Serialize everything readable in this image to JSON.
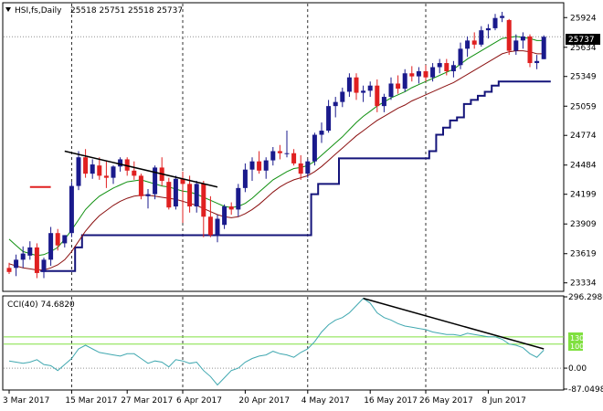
{
  "header": {
    "symbol_text": "HSI,fs,Daily",
    "ohlc_text": "25518 25751 25518 25737"
  },
  "current_price_tag": "25737",
  "indicator": {
    "title": "CCI(40) 74.6820",
    "level_tags": [
      "130",
      "100"
    ]
  },
  "colors": {
    "bull": "#1a1a8c",
    "bear": "#e02020",
    "sma": "#109010",
    "ema": "#8b1010",
    "stop": "#14147a",
    "cci": "#40a8b0",
    "trendline": "#000000",
    "level_line": "#80e040"
  },
  "chart_data": [
    {
      "type": "candlestick",
      "title": "HSI,fs,Daily",
      "ylim": [
        23260,
        26060
      ],
      "y_ticks": [
        "25924",
        "25634",
        "25349",
        "25059",
        "24774",
        "24484",
        "24199",
        "23909",
        "23619",
        "23334"
      ],
      "x_tick_labels": [
        "3 Mar 2017",
        "15 Mar 2017",
        "27 Mar 2017",
        "6 Apr 2017",
        "20 Apr 2017",
        "4 May 2017",
        "16 May 2017",
        "26 May 2017",
        "8 Jun 2017"
      ],
      "x_tick_index": [
        0,
        9,
        17,
        25,
        34,
        43,
        52,
        60,
        69
      ],
      "last_price": 25737,
      "candles": [
        [
          23480,
          23530,
          23420,
          23440
        ],
        [
          23480,
          23610,
          23400,
          23560
        ],
        [
          23560,
          23690,
          23480,
          23620
        ],
        [
          23600,
          23740,
          23560,
          23680
        ],
        [
          23680,
          23720,
          23380,
          23430
        ],
        [
          23440,
          23580,
          23380,
          23560
        ],
        [
          23560,
          23880,
          23500,
          23820
        ],
        [
          23820,
          23860,
          23650,
          23700
        ],
        [
          23720,
          23800,
          23680,
          23800
        ],
        [
          23820,
          24320,
          23780,
          24280
        ],
        [
          24280,
          24620,
          24240,
          24560
        ],
        [
          24560,
          24640,
          24360,
          24400
        ],
        [
          24400,
          24540,
          24350,
          24490
        ],
        [
          24480,
          24560,
          24340,
          24380
        ],
        [
          24380,
          24520,
          24260,
          24360
        ],
        [
          24360,
          24480,
          24300,
          24470
        ],
        [
          24470,
          24560,
          24420,
          24540
        ],
        [
          24540,
          24560,
          24380,
          24430
        ],
        [
          24430,
          24520,
          24340,
          24380
        ],
        [
          24380,
          24400,
          24150,
          24180
        ],
        [
          24180,
          24250,
          24060,
          24200
        ],
        [
          24200,
          24480,
          24150,
          24460
        ],
        [
          24460,
          24560,
          24280,
          24330
        ],
        [
          24320,
          24360,
          24050,
          24070
        ],
        [
          24080,
          24380,
          24050,
          24350
        ],
        [
          24350,
          24420,
          23920,
          24300
        ],
        [
          24300,
          24380,
          24020,
          24080
        ],
        [
          24080,
          24330,
          24020,
          24300
        ],
        [
          24300,
          24330,
          23780,
          23980
        ],
        [
          23980,
          24180,
          23780,
          23800
        ],
        [
          23800,
          24000,
          23730,
          23960
        ],
        [
          23900,
          24100,
          23860,
          24080
        ],
        [
          24080,
          24120,
          24000,
          24050
        ],
        [
          24050,
          24300,
          23980,
          24260
        ],
        [
          24260,
          24500,
          24220,
          24440
        ],
        [
          24440,
          24560,
          24330,
          24520
        ],
        [
          24520,
          24620,
          24400,
          24430
        ],
        [
          24430,
          24560,
          24350,
          24530
        ],
        [
          24530,
          24660,
          24480,
          24620
        ],
        [
          24620,
          24680,
          24540,
          24600
        ],
        [
          24600,
          24820,
          24560,
          24600
        ],
        [
          24600,
          24640,
          24480,
          24500
        ],
        [
          24500,
          24580,
          24340,
          24400
        ],
        [
          24400,
          24540,
          24360,
          24520
        ],
        [
          24520,
          24800,
          24480,
          24780
        ],
        [
          24780,
          24900,
          24700,
          24820
        ],
        [
          24820,
          25120,
          24800,
          25060
        ],
        [
          25060,
          25150,
          24950,
          25100
        ],
        [
          25100,
          25240,
          25050,
          25200
        ],
        [
          25200,
          25380,
          25150,
          25340
        ],
        [
          25340,
          25380,
          25120,
          25190
        ],
        [
          25190,
          25260,
          25100,
          25210
        ],
        [
          25210,
          25300,
          25150,
          25260
        ],
        [
          25260,
          25320,
          25000,
          25060
        ],
        [
          25060,
          25180,
          25000,
          25150
        ],
        [
          25150,
          25340,
          25120,
          25280
        ],
        [
          25280,
          25360,
          25180,
          25230
        ],
        [
          25230,
          25420,
          25200,
          25380
        ],
        [
          25380,
          25450,
          25300,
          25350
        ],
        [
          25350,
          25440,
          25280,
          25400
        ],
        [
          25400,
          25460,
          25300,
          25340
        ],
        [
          25340,
          25480,
          25300,
          25440
        ],
        [
          25440,
          25520,
          25380,
          25480
        ],
        [
          25480,
          25520,
          25360,
          25400
        ],
        [
          25400,
          25500,
          25340,
          25460
        ],
        [
          25460,
          25680,
          25420,
          25620
        ],
        [
          25620,
          25740,
          25540,
          25700
        ],
        [
          25700,
          25780,
          25620,
          25660
        ],
        [
          25660,
          25840,
          25640,
          25800
        ],
        [
          25800,
          25860,
          25720,
          25820
        ],
        [
          25820,
          25960,
          25800,
          25920
        ],
        [
          25920,
          25980,
          25880,
          25940
        ],
        [
          25900,
          25910,
          25560,
          25600
        ],
        [
          25600,
          25760,
          25560,
          25700
        ],
        [
          25700,
          25780,
          25620,
          25740
        ],
        [
          25740,
          25760,
          25440,
          25480
        ],
        [
          25480,
          25560,
          25420,
          25500
        ],
        [
          25518,
          25751,
          25518,
          25737
        ]
      ],
      "sma_values": [
        23760,
        23700,
        23640,
        23620,
        23600,
        23610,
        23640,
        23680,
        23760,
        23850,
        23950,
        24050,
        24120,
        24180,
        24220,
        24260,
        24290,
        24320,
        24330,
        24340,
        24320,
        24300,
        24280,
        24270,
        24250,
        24230,
        24220,
        24200,
        24170,
        24140,
        24110,
        24080,
        24070,
        24080,
        24110,
        24160,
        24220,
        24280,
        24340,
        24380,
        24420,
        24450,
        24460,
        24480,
        24520,
        24580,
        24640,
        24700,
        24760,
        24830,
        24900,
        24960,
        25010,
        25060,
        25100,
        25140,
        25170,
        25200,
        25240,
        25270,
        25300,
        25330,
        25360,
        25390,
        25420,
        25470,
        25520,
        25560,
        25600,
        25640,
        25680,
        25720,
        25730,
        25740,
        25730,
        25720,
        25700,
        25700
      ],
      "ema_values": [
        23520,
        23500,
        23480,
        23470,
        23460,
        23460,
        23480,
        23510,
        23560,
        23640,
        23740,
        23840,
        23920,
        23990,
        24040,
        24090,
        24130,
        24160,
        24180,
        24190,
        24190,
        24180,
        24170,
        24160,
        24150,
        24130,
        24110,
        24090,
        24060,
        24030,
        24000,
        23980,
        23970,
        23980,
        24010,
        24050,
        24100,
        24160,
        24220,
        24270,
        24310,
        24340,
        24360,
        24380,
        24420,
        24470,
        24530,
        24590,
        24650,
        24710,
        24770,
        24820,
        24870,
        24920,
        24960,
        25000,
        25040,
        25070,
        25110,
        25140,
        25170,
        25200,
        25230,
        25260,
        25290,
        25330,
        25370,
        25410,
        25450,
        25490,
        25530,
        25570,
        25590,
        25600,
        25600,
        25590,
        25570,
        25570
      ],
      "stop_values": [
        null,
        null,
        null,
        null,
        null,
        23450,
        23450,
        23450,
        23450,
        23450,
        23680,
        23800,
        23800,
        23800,
        23800,
        23800,
        23800,
        23800,
        23800,
        23800,
        23800,
        23800,
        23800,
        23800,
        23800,
        23800,
        23800,
        23800,
        23800,
        23800,
        23800,
        23800,
        23800,
        23800,
        23800,
        23800,
        23800,
        23800,
        23800,
        23800,
        23800,
        23800,
        23800,
        23800,
        24200,
        24300,
        24300,
        24300,
        24550,
        24550,
        24550,
        24550,
        24550,
        24550,
        24550,
        24550,
        24550,
        24550,
        24550,
        24550,
        24550,
        24620,
        24780,
        24850,
        24920,
        24950,
        25080,
        25120,
        25160,
        25200,
        25260,
        25300,
        25300,
        25300,
        25300,
        25300,
        25300,
        25300
      ],
      "price_trendline": {
        "from": [
          8,
          24620
        ],
        "to": [
          30,
          24270
        ]
      },
      "horizontal_segment": {
        "from": [
          3,
          24270
        ],
        "to": [
          6,
          24270
        ]
      }
    },
    {
      "type": "line",
      "title": "CCI(40) 74.6820",
      "ylim": [
        -87.0498,
        296.2986
      ],
      "y_ticks": [
        "296.2986",
        "0.00",
        "-87.0498"
      ],
      "levels": [
        130,
        100
      ],
      "values": [
        30,
        25,
        20,
        25,
        35,
        15,
        10,
        -10,
        15,
        40,
        80,
        95,
        80,
        65,
        60,
        55,
        50,
        60,
        60,
        40,
        20,
        30,
        25,
        5,
        35,
        30,
        20,
        25,
        -10,
        -35,
        -70,
        -40,
        -10,
        0,
        25,
        40,
        50,
        55,
        70,
        60,
        55,
        45,
        65,
        80,
        110,
        150,
        180,
        200,
        210,
        230,
        260,
        290,
        270,
        230,
        210,
        200,
        185,
        175,
        170,
        165,
        160,
        150,
        145,
        140,
        140,
        135,
        145,
        140,
        135,
        130,
        130,
        120,
        100,
        95,
        85,
        60,
        45,
        74.682
      ],
      "trendline": {
        "from": [
          51,
          290
        ],
        "to": [
          77,
          80
        ]
      }
    }
  ]
}
